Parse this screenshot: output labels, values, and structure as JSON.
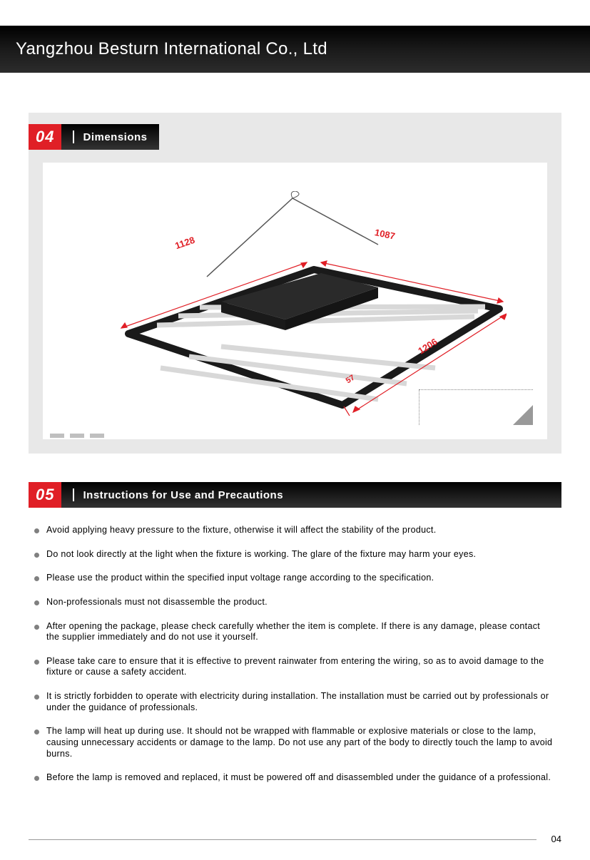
{
  "header": {
    "company": "Yangzhou Besturn International Co., Ltd"
  },
  "section04": {
    "number": "04",
    "title": "Dimensions",
    "dims": {
      "d1": "1128",
      "d2": "1087",
      "d3": "1206",
      "d4": "57"
    },
    "colors": {
      "dim_label": "#e01f26",
      "panel_bg": "#e8e8e8",
      "inner_bg": "#ffffff"
    }
  },
  "section05": {
    "number": "05",
    "title": "Instructions for Use and Precautions",
    "items": [
      "Avoid applying heavy pressure to the fixture, otherwise it will affect the stability of the product.",
      "Do not look directly at the light when the fixture is working. The glare of the fixture may harm your eyes.",
      "Please use the product within the specified input voltage range according to the specification.",
      "Non-professionals must not disassemble the product.",
      "After opening the package, please check carefully whether the item is complete. If there is any damage, please contact the supplier immediately and do not use it yourself.",
      "Please take care to ensure that it is effective to prevent rainwater from entering the wiring, so as to avoid damage to the fixture or cause a safety accident.",
      "It is strictly forbidden to operate with electricity during installation. The installation must be carried out by professionals or under the guidance of professionals.",
      "The lamp will heat up during use. It should not be wrapped with flammable or explosive materials or close to the lamp, causing unnecessary accidents or damage to the lamp. Do not use any part of the body to directly touch the lamp to avoid burns.",
      "Before the lamp is removed and replaced, it must be powered off and disassembled under the guidance of a professional."
    ]
  },
  "footer": {
    "page": "04"
  },
  "style": {
    "accent": "#e01f26",
    "header_bg": "#000000",
    "text": "#000000",
    "bullet": "#808080"
  }
}
